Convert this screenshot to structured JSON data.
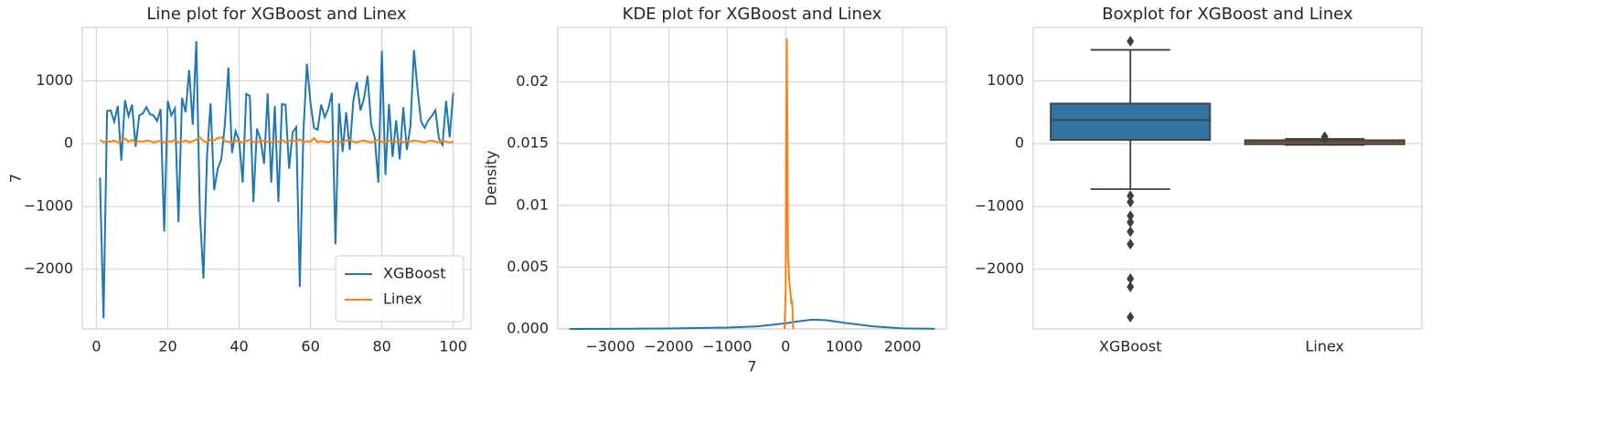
{
  "chart_data": [
    {
      "type": "line",
      "title": "Line plot for XGBoost and Linex",
      "ylabel": "7",
      "x": [
        1,
        2,
        3,
        4,
        5,
        6,
        7,
        8,
        9,
        10,
        11,
        12,
        13,
        14,
        15,
        16,
        17,
        18,
        19,
        20,
        21,
        22,
        23,
        24,
        25,
        26,
        27,
        28,
        29,
        30,
        31,
        32,
        33,
        34,
        35,
        36,
        37,
        38,
        39,
        40,
        41,
        42,
        43,
        44,
        45,
        46,
        47,
        48,
        49,
        50,
        51,
        52,
        53,
        54,
        55,
        56,
        57,
        58,
        59,
        60,
        61,
        62,
        63,
        64,
        65,
        66,
        67,
        68,
        69,
        70,
        71,
        72,
        73,
        74,
        75,
        76,
        77,
        78,
        79,
        80,
        81,
        82,
        83,
        84,
        85,
        86,
        87,
        88,
        89,
        90,
        91,
        92,
        93,
        94,
        95,
        96,
        97,
        98,
        99,
        100
      ],
      "series": [
        {
          "name": "XGBoost",
          "color": "#1f77b4",
          "values": [
            -540,
            -2780,
            520,
            530,
            350,
            600,
            -270,
            690,
            440,
            620,
            -50,
            450,
            480,
            580,
            470,
            450,
            360,
            550,
            -1400,
            680,
            450,
            560,
            -1250,
            730,
            500,
            1170,
            300,
            1630,
            -1100,
            -2150,
            -200,
            640,
            -740,
            -400,
            -250,
            300,
            1210,
            -150,
            200,
            50,
            -620,
            790,
            760,
            -930,
            240,
            60,
            -320,
            800,
            -620,
            600,
            -930,
            630,
            620,
            -400,
            180,
            260,
            -2280,
            170,
            1270,
            640,
            250,
            220,
            620,
            420,
            560,
            810,
            -1600,
            640,
            -130,
            500,
            -100,
            680,
            980,
            530,
            720,
            1080,
            300,
            100,
            -620,
            1480,
            -500,
            630,
            -210,
            370,
            -250,
            580,
            -100,
            280,
            1490,
            860,
            350,
            250,
            370,
            440,
            530,
            80,
            -20,
            680,
            100,
            810
          ]
        },
        {
          "name": "Linex",
          "color": "#ff7f0e",
          "values": [
            60,
            20,
            40,
            30,
            50,
            20,
            40,
            80,
            30,
            60,
            20,
            40,
            30,
            50,
            40,
            20,
            30,
            50,
            20,
            40,
            30,
            60,
            20,
            30,
            50,
            20,
            40,
            60,
            100,
            40,
            20,
            60,
            50,
            90,
            100,
            40,
            30,
            20,
            50,
            30,
            20,
            40,
            60,
            30,
            20,
            50,
            40,
            30,
            20,
            40,
            30,
            60,
            20,
            40,
            50,
            30,
            70,
            20,
            40,
            30,
            90,
            20,
            40,
            30,
            20,
            50,
            40,
            30,
            20,
            50,
            60,
            30,
            20,
            40,
            50,
            30,
            20,
            40,
            60,
            30,
            20,
            50,
            40,
            30,
            60,
            20,
            40,
            30,
            50,
            40,
            30,
            20,
            40,
            50,
            30,
            20,
            40,
            30,
            20,
            30
          ]
        }
      ],
      "xlim": [
        -3.95,
        104.95
      ],
      "xticks": [
        0,
        20,
        40,
        60,
        80,
        100
      ],
      "ylim": [
        -2950,
        1850
      ],
      "yticks": [
        {
          "value": -2000,
          "label": "−2000"
        },
        {
          "value": -1000,
          "label": "−1000"
        },
        0,
        1000
      ],
      "grid": true,
      "legend": "lower right"
    },
    {
      "type": "line",
      "title": "KDE plot for XGBoost and Linex",
      "xlabel": "7",
      "ylabel": "Density",
      "series": [
        {
          "color": "#1f77b4",
          "x": [
            -3700,
            -3000,
            -2000,
            -1000,
            -500,
            0,
            200,
            450,
            700,
            1000,
            1500,
            2000,
            2550
          ],
          "values": [
            0,
            1e-05,
            4e-05,
            0.00011,
            0.0002,
            0.00045,
            0.0006,
            0.00075,
            0.0007,
            0.0005,
            0.0002,
            5e-05,
            1e-05
          ]
        },
        {
          "color": "#ff7f0e",
          "x": [
            -20,
            0,
            10,
            20,
            30,
            40,
            60,
            80,
            90,
            100,
            110,
            130
          ],
          "values": [
            0,
            0.003,
            0.015,
            0.0235,
            0.015,
            0.006,
            0.004,
            0.003,
            0.0025,
            0.002,
            0.0023,
            0
          ]
        }
      ],
      "xlim": [
        -3900,
        2750
      ],
      "xticks": [
        {
          "value": -3000,
          "label": "−3000"
        },
        {
          "value": -2000,
          "label": "−2000"
        },
        {
          "value": -1000,
          "label": "−1000"
        },
        0,
        1000,
        2000
      ],
      "ylim": [
        0,
        0.0244
      ],
      "yticks": [
        {
          "value": 0,
          "label": "0.000"
        },
        0.005,
        0.01,
        0.015,
        0.02
      ],
      "grid": true
    },
    {
      "type": "box",
      "title": "Boxplot for XGBoost and Linex",
      "categories": [
        "XGBoost",
        "Linex"
      ],
      "colors": [
        "#3274a1",
        "#e1812c"
      ],
      "boxes": [
        {
          "whislo": -725,
          "q1": 58,
          "median": 375,
          "q3": 638,
          "whishi": 1493,
          "fliers": [
            1630,
            -830,
            -930,
            -1150,
            -1250,
            -1400,
            -1600,
            -2150,
            -2280,
            -2760
          ]
        },
        {
          "whislo": -20,
          "q1": -10,
          "median": 25,
          "q3": 55,
          "whishi": 75,
          "fliers": [
            80,
            110
          ]
        }
      ],
      "ylim": [
        -2950,
        1850
      ],
      "yticks": [
        {
          "value": -2000,
          "label": "−2000"
        },
        {
          "value": -1000,
          "label": "−1000"
        },
        0,
        1000
      ],
      "grid": true
    }
  ]
}
